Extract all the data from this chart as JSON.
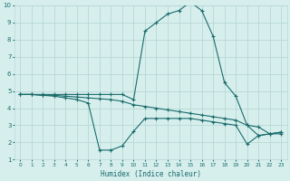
{
  "xlabel": "Humidex (Indice chaleur)",
  "bg_color": "#d6efed",
  "grid_color": "#b8d8d5",
  "line_color": "#1a6b6b",
  "xlim": [
    -0.5,
    23.5
  ],
  "ylim": [
    1,
    10
  ],
  "yticks": [
    1,
    2,
    3,
    4,
    5,
    6,
    7,
    8,
    9,
    10
  ],
  "xticks": [
    0,
    1,
    2,
    3,
    4,
    5,
    6,
    7,
    8,
    9,
    10,
    11,
    12,
    13,
    14,
    15,
    16,
    17,
    18,
    19,
    20,
    21,
    22,
    23
  ],
  "line1_x": [
    0,
    1,
    2,
    3,
    4,
    5,
    6,
    7,
    8,
    9,
    10,
    11,
    12,
    13,
    14,
    15,
    16,
    17,
    18,
    19,
    20,
    21,
    22,
    23
  ],
  "line1_y": [
    4.8,
    4.8,
    4.8,
    4.8,
    4.8,
    4.8,
    4.8,
    4.8,
    4.8,
    4.8,
    4.5,
    8.5,
    9.0,
    9.5,
    9.7,
    10.2,
    9.7,
    8.2,
    5.5,
    4.7,
    3.0,
    2.4,
    2.5,
    2.6
  ],
  "line2_x": [
    0,
    1,
    2,
    3,
    4,
    5,
    6,
    7,
    8,
    9,
    10,
    11,
    12,
    13,
    14,
    15,
    16,
    17,
    18,
    19,
    20,
    21,
    22,
    23
  ],
  "line2_y": [
    4.8,
    4.8,
    4.75,
    4.75,
    4.7,
    4.65,
    4.6,
    4.55,
    4.5,
    4.4,
    4.2,
    4.1,
    4.0,
    3.9,
    3.8,
    3.7,
    3.6,
    3.5,
    3.4,
    3.3,
    3.0,
    2.9,
    2.5,
    2.6
  ],
  "line3_x": [
    0,
    1,
    2,
    3,
    4,
    5,
    6,
    7,
    8,
    9,
    10,
    11,
    12,
    13,
    14,
    15,
    16,
    17,
    18,
    19,
    20,
    21,
    22,
    23
  ],
  "line3_y": [
    4.8,
    4.8,
    4.75,
    4.7,
    4.6,
    4.5,
    4.3,
    1.55,
    1.55,
    1.8,
    2.65,
    3.4,
    3.4,
    3.4,
    3.4,
    3.4,
    3.3,
    3.2,
    3.1,
    3.0,
    1.9,
    2.4,
    2.5,
    2.5
  ]
}
